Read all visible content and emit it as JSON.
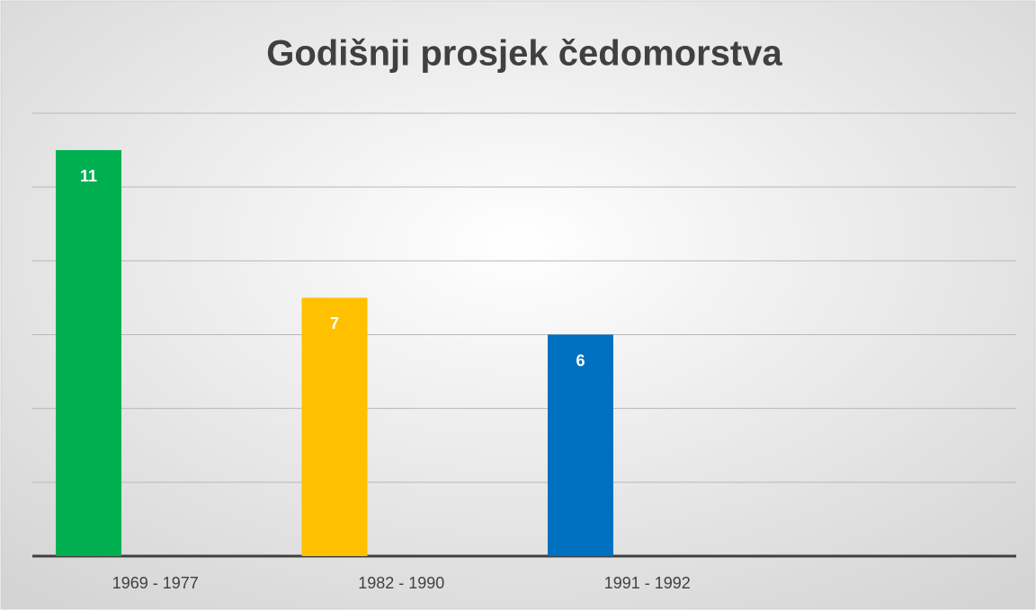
{
  "chart_data": {
    "type": "bar",
    "title": "Godišnji prosjek čedomorstva",
    "categories": [
      "1969 - 1977",
      "1982 - 1990",
      "1991 - 1992",
      null
    ],
    "values": [
      11,
      7,
      6,
      null
    ],
    "colors": [
      "#00b050",
      "#ffc000",
      "#0070c0",
      null
    ],
    "ylim": [
      0,
      12
    ],
    "yticks": [
      0,
      2,
      4,
      6,
      8,
      10,
      12
    ],
    "grid": true
  }
}
